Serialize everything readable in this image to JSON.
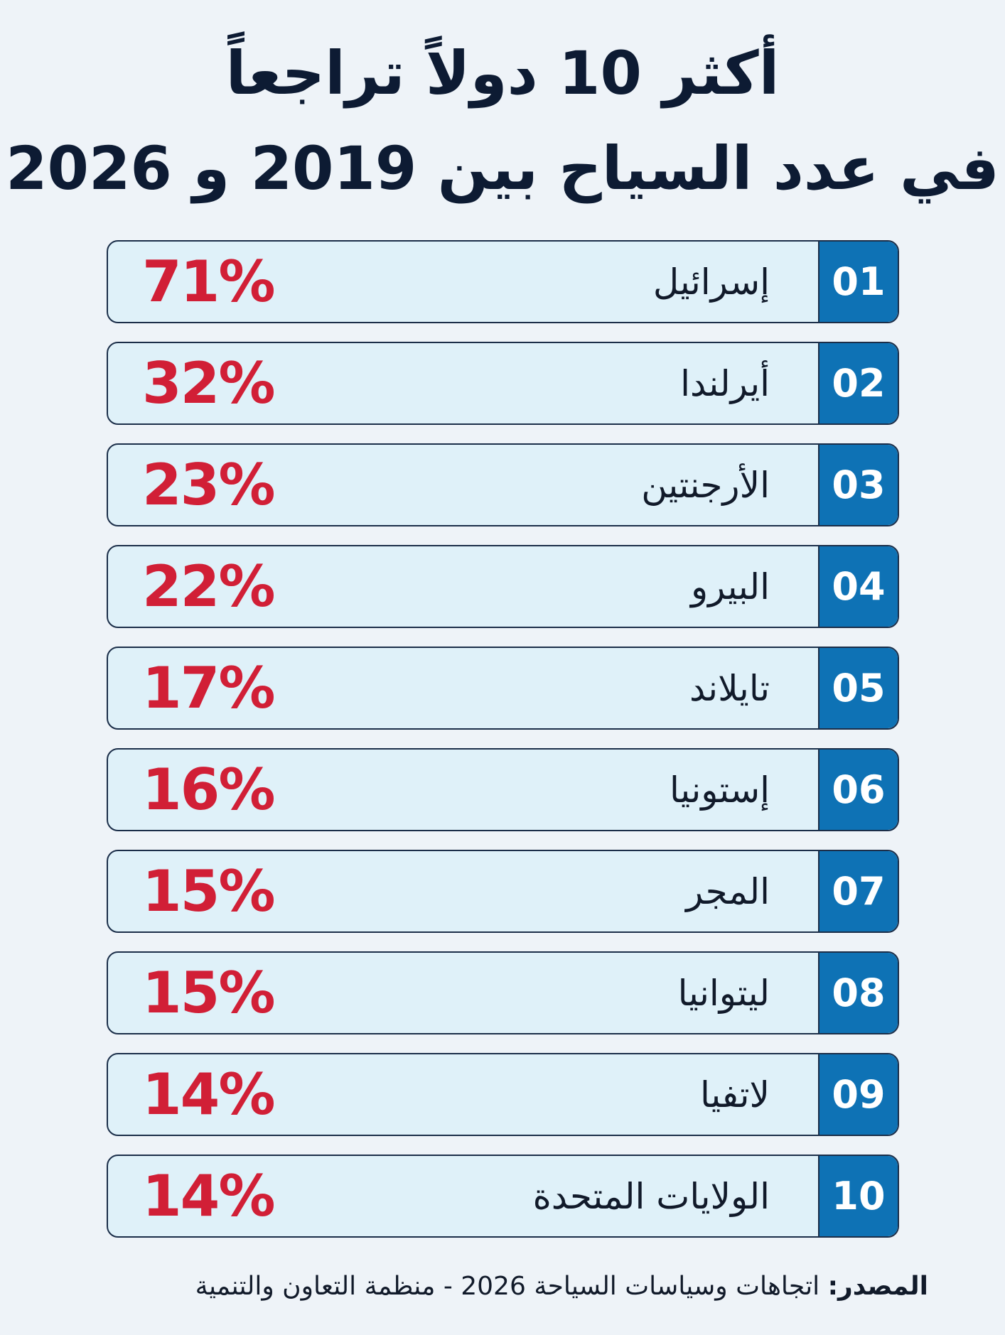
{
  "title": {
    "line1": "أكثر 10 دولاً تراجعاً",
    "line2": "في عدد السياح بين 2019 و 2026"
  },
  "rows": [
    {
      "rank": "01",
      "country": "إسرائيل",
      "percent": "71%"
    },
    {
      "rank": "02",
      "country": "أيرلندا",
      "percent": "32%"
    },
    {
      "rank": "03",
      "country": "الأرجنتين",
      "percent": "23%"
    },
    {
      "rank": "04",
      "country": "البيرو",
      "percent": "22%"
    },
    {
      "rank": "05",
      "country": "تايلاند",
      "percent": "17%"
    },
    {
      "rank": "06",
      "country": "إستونيا",
      "percent": "16%"
    },
    {
      "rank": "07",
      "country": "المجر",
      "percent": "15%"
    },
    {
      "rank": "08",
      "country": "ليتوانيا",
      "percent": "15%"
    },
    {
      "rank": "09",
      "country": "لاتفيا",
      "percent": "14%"
    },
    {
      "rank": "10",
      "country": "الولايات المتحدة",
      "percent": "14%"
    }
  ],
  "source": {
    "label": "المصدر:",
    "text": "اتجاهات وسياسات السياحة 2026 - منظمة التعاون والتنمية"
  },
  "colors": {
    "background": "#eef3f8",
    "row_background": "#dff1f9",
    "rank_background": "#0e72b5",
    "percent": "#d11f36",
    "title": "#0d1b33"
  }
}
